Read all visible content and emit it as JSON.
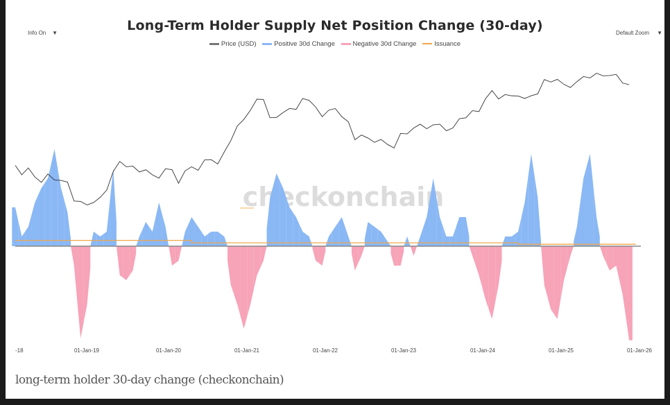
{
  "controls": {
    "info": "Info On",
    "info_arrow": "▼",
    "zoom": "Default Zoom",
    "zoom_arrow": "▼"
  },
  "watermark": "checkonchain",
  "caption": "long-term holder 30-day change (checkonchain)",
  "chart_data": {
    "type": "area",
    "title": "Long-Term Holder Supply Net Position Change (30-day)",
    "legend": [
      {
        "name": "Price (USD)",
        "color": "#555555"
      },
      {
        "name": "Positive 30d Change",
        "color": "#8ab8f5"
      },
      {
        "name": "Negative 30d Change",
        "color": "#f7a3b8"
      },
      {
        "name": "Issuance",
        "color": "#f0a64a"
      }
    ],
    "legend_position": "top-center",
    "x_start": "2018-02",
    "x_step": "month",
    "x_ticks": [
      "-18",
      "01-Jan-19",
      "01-Jan-20",
      "01-Jan-21",
      "01-Jan-22",
      "01-Jan-23",
      "01-Jan-24",
      "01-Jan-25",
      "01-Jan-26"
    ],
    "price_scale": "log",
    "price_usd": [
      10000,
      8000,
      9000,
      7500,
      6400,
      7700,
      7000,
      6600,
      6300,
      4000,
      3700,
      3500,
      3800,
      4100,
      5300,
      8500,
      10800,
      10000,
      9600,
      8300,
      9200,
      7500,
      7200,
      9300,
      8600,
      6400,
      8600,
      9400,
      9100,
      11300,
      11600,
      10700,
      13800,
      19700,
      29000,
      33000,
      45000,
      58000,
      57000,
      37000,
      35000,
      41000,
      47000,
      43000,
      61000,
      57000,
      46000,
      38000,
      43000,
      45000,
      38000,
      31000,
      20000,
      23000,
      20000,
      19000,
      20000,
      17000,
      16500,
      23000,
      23000,
      28000,
      29000,
      27000,
      30000,
      29000,
      26000,
      27000,
      34000,
      37000,
      42000,
      42000,
      61000,
      71000,
      60000,
      67000,
      62000,
      66000,
      59000,
      63000,
      70000,
      96000,
      93000,
      102000,
      84000,
      82000,
      94000,
      104000,
      107000,
      115000,
      108000,
      114000,
      110000,
      91000,
      88000
    ],
    "net_change_relative": [
      0.4,
      0.1,
      0.2,
      0.45,
      0.6,
      0.7,
      1.0,
      0.6,
      0.35,
      -0.2,
      -0.95,
      -0.6,
      0.15,
      0.1,
      0.15,
      0.8,
      -0.3,
      -0.35,
      -0.25,
      0.1,
      0.25,
      0.15,
      0.45,
      0.2,
      -0.2,
      -0.15,
      0.15,
      0.3,
      0.2,
      0.1,
      0.15,
      0.15,
      0.1,
      -0.4,
      -0.6,
      -0.85,
      -0.6,
      -0.3,
      -0.15,
      0.5,
      0.75,
      0.6,
      0.4,
      0.3,
      0.15,
      0.1,
      -0.15,
      -0.2,
      0.1,
      0.2,
      0.3,
      0.1,
      -0.25,
      -0.1,
      0.25,
      0.2,
      0.15,
      0.05,
      -0.2,
      -0.2,
      0.1,
      -0.1,
      0.1,
      0.3,
      0.7,
      0.3,
      0.1,
      0.1,
      0.3,
      0.3,
      -0.1,
      -0.3,
      -0.55,
      -0.75,
      -0.4,
      0.1,
      0.1,
      0.15,
      0.45,
      0.95,
      0.5,
      -0.4,
      -0.65,
      -0.75,
      -0.35,
      -0.1,
      0.2,
      0.7,
      0.95,
      0.3,
      -0.1,
      -0.25,
      -0.2,
      -0.5,
      -0.97
    ],
    "issuance_relative": [
      0.06,
      0.035,
      0.02,
      0.015
    ]
  }
}
